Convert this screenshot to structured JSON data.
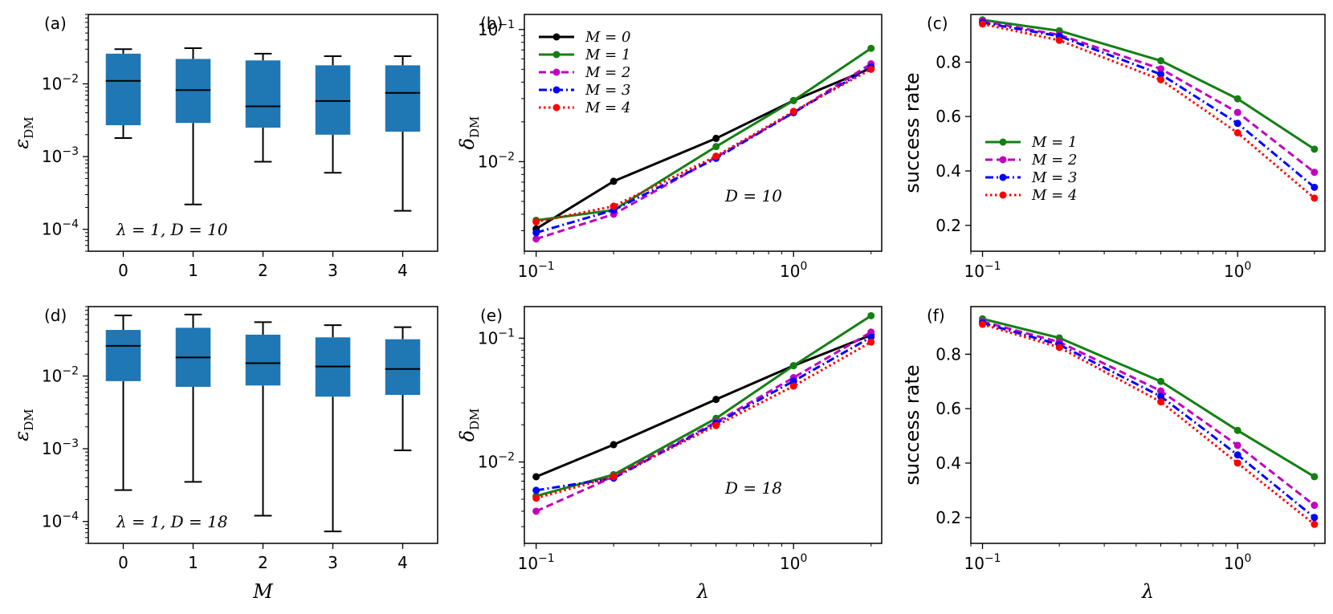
{
  "colors": {
    "box_fill": "#1f77b4",
    "M0": "#000000",
    "M1": "#138013",
    "M2": "#bf00bf",
    "M3": "#0000ff",
    "M4": "#ff0000"
  },
  "chart_data": [
    {
      "panel": "(a)",
      "type": "box",
      "ylabel": "ε_DM",
      "xlabel": "",
      "yscale": "log",
      "ylim": [
        5e-05,
        0.09
      ],
      "yticks": [
        "10^-4",
        "10^-3",
        "10^-2"
      ],
      "categories": [
        "0",
        "1",
        "2",
        "3",
        "4"
      ],
      "annotation": "λ = 1, D = 10",
      "boxes": [
        {
          "whislo": 0.0018,
          "q1": 0.0027,
          "med": 0.011,
          "q3": 0.026,
          "whishi": 0.03
        },
        {
          "whislo": 0.00022,
          "q1": 0.0029,
          "med": 0.0082,
          "q3": 0.022,
          "whishi": 0.031
        },
        {
          "whislo": 0.00085,
          "q1": 0.0025,
          "med": 0.0049,
          "q3": 0.021,
          "whishi": 0.026
        },
        {
          "whislo": 0.0006,
          "q1": 0.002,
          "med": 0.0058,
          "q3": 0.018,
          "whishi": 0.024
        },
        {
          "whislo": 0.00018,
          "q1": 0.0022,
          "med": 0.0075,
          "q3": 0.018,
          "whishi": 0.024
        }
      ]
    },
    {
      "panel": "(b)",
      "type": "line",
      "ylabel": "δ_DM",
      "xlabel": "",
      "xscale": "log",
      "yscale": "log",
      "xlim": [
        0.09,
        2.2
      ],
      "ylim": [
        0.0021,
        0.13
      ],
      "xticks": [
        "10^-1",
        "10^0"
      ],
      "yticks": [
        "10^-2",
        "10^-1"
      ],
      "annotation": "D = 10",
      "legend": "upper left",
      "x": [
        0.1,
        0.2,
        0.5,
        1.0,
        2.0
      ],
      "series": [
        {
          "name": "M = 0",
          "key": "M0",
          "style": "solid",
          "values": [
            0.0031,
            0.0071,
            0.015,
            0.029,
            0.051
          ]
        },
        {
          "name": "M = 1",
          "key": "M1",
          "style": "solid",
          "values": [
            0.0036,
            0.0043,
            0.013,
            0.029,
            0.072
          ]
        },
        {
          "name": "M = 2",
          "key": "M2",
          "style": "dashed",
          "values": [
            0.0026,
            0.004,
            0.0108,
            0.0235,
            0.055
          ]
        },
        {
          "name": "M = 3",
          "key": "M3",
          "style": "dashdot",
          "values": [
            0.0029,
            0.0043,
            0.0106,
            0.0235,
            0.052
          ]
        },
        {
          "name": "M = 4",
          "key": "M4",
          "style": "dotted",
          "values": [
            0.0035,
            0.0046,
            0.011,
            0.024,
            0.05
          ]
        }
      ]
    },
    {
      "panel": "(c)",
      "type": "line",
      "ylabel": "success rate",
      "xlabel": "",
      "xscale": "log",
      "yscale": "linear",
      "xlim": [
        0.09,
        2.2
      ],
      "ylim": [
        0.105,
        0.975
      ],
      "xticks": [
        "10^-1",
        "10^0"
      ],
      "yticks": [
        "0.2",
        "0.4",
        "0.6",
        "0.8"
      ],
      "legend": "lower left",
      "x": [
        0.1,
        0.2,
        0.5,
        1.0,
        2.0
      ],
      "series": [
        {
          "name": "M = 1",
          "key": "M1",
          "style": "solid",
          "values": [
            0.955,
            0.915,
            0.805,
            0.665,
            0.48
          ]
        },
        {
          "name": "M = 2",
          "key": "M2",
          "style": "dashed",
          "values": [
            0.95,
            0.9,
            0.775,
            0.615,
            0.395
          ]
        },
        {
          "name": "M = 3",
          "key": "M3",
          "style": "dashdot",
          "values": [
            0.945,
            0.895,
            0.755,
            0.575,
            0.34
          ]
        },
        {
          "name": "M = 4",
          "key": "M4",
          "style": "dotted",
          "values": [
            0.94,
            0.88,
            0.735,
            0.54,
            0.3
          ]
        }
      ]
    },
    {
      "panel": "(d)",
      "type": "box",
      "ylabel": "ε_DM",
      "xlabel": "M",
      "yscale": "log",
      "ylim": [
        5e-05,
        0.09
      ],
      "yticks": [
        "10^-4",
        "10^-3",
        "10^-2"
      ],
      "categories": [
        "0",
        "1",
        "2",
        "3",
        "4"
      ],
      "annotation": "λ = 1, D = 18",
      "boxes": [
        {
          "whislo": 0.00027,
          "q1": 0.0085,
          "med": 0.026,
          "q3": 0.043,
          "whishi": 0.068
        },
        {
          "whislo": 0.00035,
          "q1": 0.0071,
          "med": 0.018,
          "q3": 0.046,
          "whishi": 0.07
        },
        {
          "whislo": 0.00012,
          "q1": 0.0074,
          "med": 0.015,
          "q3": 0.037,
          "whishi": 0.055
        },
        {
          "whislo": 7.3e-05,
          "q1": 0.0052,
          "med": 0.0135,
          "q3": 0.034,
          "whishi": 0.05
        },
        {
          "whislo": 0.00095,
          "q1": 0.0055,
          "med": 0.0125,
          "q3": 0.032,
          "whishi": 0.047
        }
      ]
    },
    {
      "panel": "(e)",
      "type": "line",
      "ylabel": "δ_DM",
      "xlabel": "λ",
      "xscale": "log",
      "yscale": "log",
      "xlim": [
        0.09,
        2.2
      ],
      "ylim": [
        0.0022,
        0.18
      ],
      "xticks": [
        "10^-1",
        "10^0"
      ],
      "yticks": [
        "10^-2",
        "10^-1"
      ],
      "annotation": "D = 18",
      "x": [
        0.1,
        0.2,
        0.5,
        1.0,
        2.0
      ],
      "series": [
        {
          "name": "M = 0",
          "key": "M0",
          "style": "solid",
          "values": [
            0.0076,
            0.0138,
            0.032,
            0.06,
            0.106
          ]
        },
        {
          "name": "M = 1",
          "key": "M1",
          "style": "solid",
          "values": [
            0.0053,
            0.0079,
            0.0225,
            0.06,
            0.152
          ]
        },
        {
          "name": "M = 2",
          "key": "M2",
          "style": "dashed",
          "values": [
            0.004,
            0.0076,
            0.021,
            0.048,
            0.112
          ]
        },
        {
          "name": "M = 3",
          "key": "M3",
          "style": "dashdot",
          "values": [
            0.0059,
            0.0074,
            0.0205,
            0.045,
            0.102
          ]
        },
        {
          "name": "M = 4",
          "key": "M4",
          "style": "dotted",
          "values": [
            0.0051,
            0.0076,
            0.0197,
            0.041,
            0.093
          ]
        }
      ]
    },
    {
      "panel": "(f)",
      "type": "line",
      "ylabel": "success rate",
      "xlabel": "λ",
      "xscale": "log",
      "yscale": "linear",
      "xlim": [
        0.09,
        2.2
      ],
      "ylim": [
        0.105,
        0.975
      ],
      "xticks": [
        "10^-1",
        "10^0"
      ],
      "yticks": [
        "0.2",
        "0.4",
        "0.6",
        "0.8"
      ],
      "x": [
        0.1,
        0.2,
        0.5,
        1.0,
        2.0
      ],
      "series": [
        {
          "name": "M = 1",
          "key": "M1",
          "style": "solid",
          "values": [
            0.93,
            0.86,
            0.7,
            0.52,
            0.35
          ]
        },
        {
          "name": "M = 2",
          "key": "M2",
          "style": "dashed",
          "values": [
            0.92,
            0.845,
            0.665,
            0.465,
            0.245
          ]
        },
        {
          "name": "M = 3",
          "key": "M3",
          "style": "dashdot",
          "values": [
            0.915,
            0.835,
            0.645,
            0.43,
            0.2
          ]
        },
        {
          "name": "M = 4",
          "key": "M4",
          "style": "dotted",
          "values": [
            0.91,
            0.825,
            0.625,
            0.4,
            0.175
          ]
        }
      ]
    }
  ]
}
